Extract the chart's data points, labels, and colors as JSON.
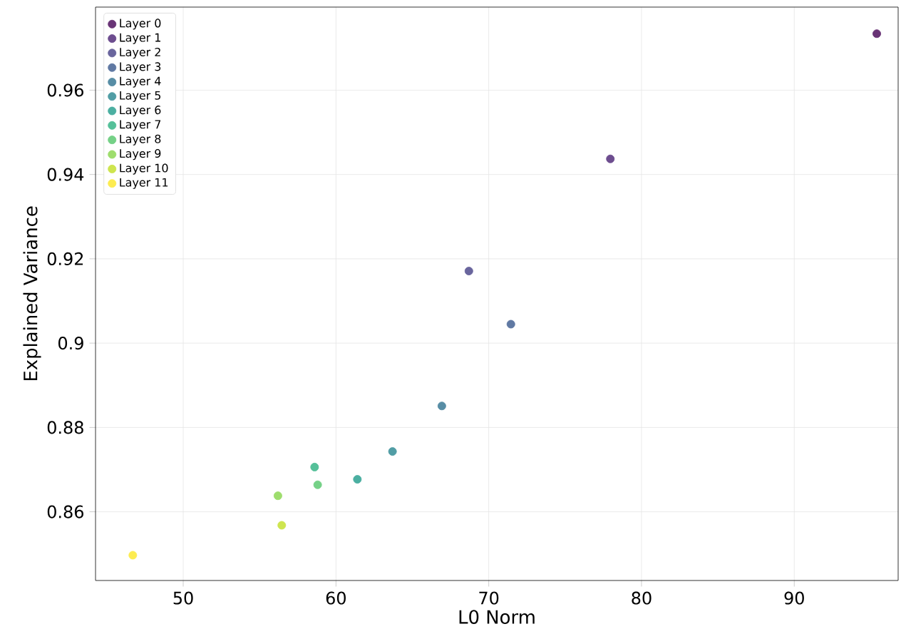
{
  "chart_data": {
    "type": "scatter",
    "xlabel": "L0 Norm",
    "ylabel": "Explained Variance",
    "xlim": [
      44.26,
      96.8
    ],
    "ylim": [
      0.8437,
      0.9797
    ],
    "xticks": [
      50,
      60,
      70,
      80,
      90
    ],
    "yticks": [
      0.86,
      0.88,
      0.9,
      0.92,
      0.94,
      0.96
    ],
    "grid": true,
    "legend": "top left",
    "marker": "circle",
    "series": [
      {
        "name": "Layer 0",
        "color": "#693476",
        "x": [
          95.4
        ],
        "values": [
          0.9734
        ]
      },
      {
        "name": "Layer 1",
        "color": "#6d4d8f",
        "x": [
          77.96
        ],
        "values": [
          0.9437
        ]
      },
      {
        "name": "Layer 2",
        "color": "#69659d",
        "x": [
          68.7
        ],
        "values": [
          0.9171
        ]
      },
      {
        "name": "Layer 3",
        "color": "#6079a3",
        "x": [
          71.45
        ],
        "values": [
          0.9045
        ]
      },
      {
        "name": "Layer 4",
        "color": "#578da5",
        "x": [
          66.93
        ],
        "values": [
          0.8851
        ]
      },
      {
        "name": "Layer 5",
        "color": "#519da5",
        "x": [
          63.7
        ],
        "values": [
          0.8743
        ]
      },
      {
        "name": "Layer 6",
        "color": "#4bafa1",
        "x": [
          61.4
        ],
        "values": [
          0.8677
        ]
      },
      {
        "name": "Layer 7",
        "color": "#55c099",
        "x": [
          58.6
        ],
        "values": [
          0.8706
        ]
      },
      {
        "name": "Layer 8",
        "color": "#75d187",
        "x": [
          58.8
        ],
        "values": [
          0.8664
        ]
      },
      {
        "name": "Layer 9",
        "color": "#9edd6d",
        "x": [
          56.2
        ],
        "values": [
          0.8638
        ]
      },
      {
        "name": "Layer 10",
        "color": "#cee54f",
        "x": [
          56.45
        ],
        "values": [
          0.8568
        ]
      },
      {
        "name": "Layer 11",
        "color": "#fdec51",
        "x": [
          46.7
        ],
        "values": [
          0.8497
        ]
      }
    ]
  }
}
